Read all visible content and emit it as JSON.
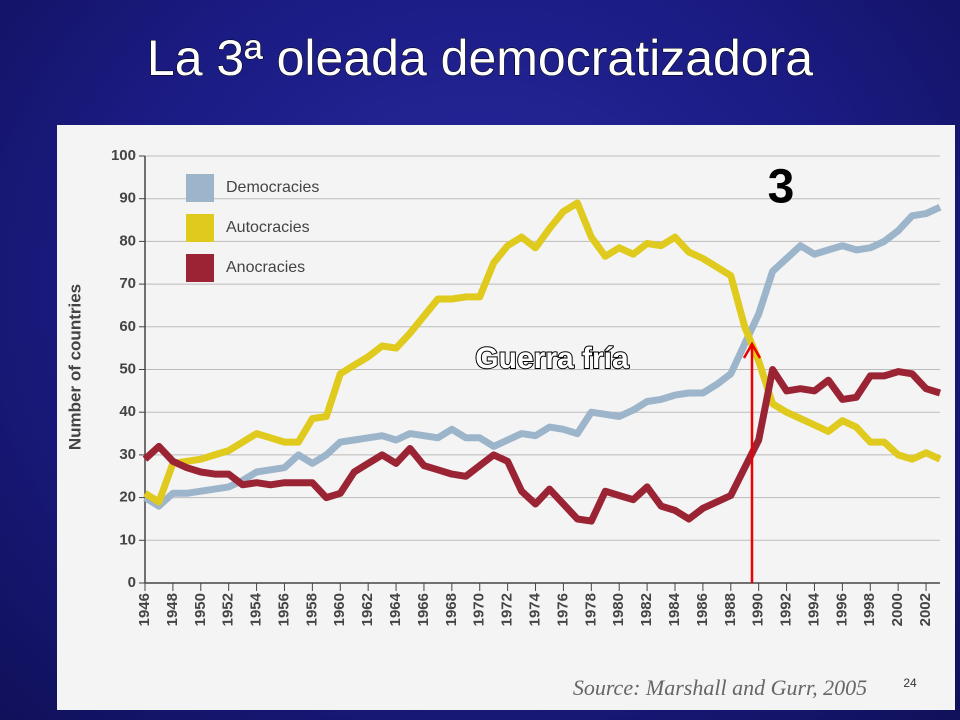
{
  "slide": {
    "title": "La 3ª oleada democratizadora",
    "page_number": "24"
  },
  "chart_data": {
    "type": "line",
    "y_label": "Number of countries",
    "x": [
      1946,
      1947,
      1948,
      1949,
      1950,
      1951,
      1952,
      1953,
      1954,
      1955,
      1956,
      1957,
      1958,
      1959,
      1960,
      1961,
      1962,
      1963,
      1964,
      1965,
      1966,
      1967,
      1968,
      1969,
      1970,
      1971,
      1972,
      1973,
      1974,
      1975,
      1976,
      1977,
      1978,
      1979,
      1980,
      1981,
      1982,
      1983,
      1984,
      1985,
      1986,
      1987,
      1988,
      1989,
      1990,
      1991,
      1992,
      1993,
      1994,
      1995,
      1996,
      1997,
      1998,
      1999,
      2000,
      2001,
      2002,
      2003
    ],
    "series": [
      {
        "name": "Democracies",
        "color": "#9db5cb",
        "values": [
          20,
          18,
          21,
          21,
          21.5,
          22,
          22.5,
          24,
          26,
          26.5,
          27,
          30,
          28,
          30,
          33,
          33.5,
          34,
          34.5,
          33.5,
          35,
          34.5,
          34,
          36,
          34,
          34,
          32,
          33.5,
          35,
          34.5,
          36.5,
          36,
          35,
          40,
          39.5,
          39,
          40.5,
          42.5,
          43,
          44,
          44.5,
          44.5,
          46.5,
          49,
          56,
          63,
          73,
          76,
          79,
          77,
          78,
          79,
          78,
          78.5,
          80,
          82.5,
          86,
          86.5,
          88
        ]
      },
      {
        "name": "Autocracies",
        "color": "#dfca1d",
        "values": [
          21,
          19,
          28,
          28.5,
          29,
          30,
          31,
          33,
          35,
          34,
          33,
          33,
          38.5,
          39,
          49,
          51,
          53,
          55.5,
          55,
          58.5,
          62.5,
          66.5,
          66.5,
          67,
          67,
          75,
          79,
          81,
          78.5,
          83,
          87,
          89,
          81,
          76.5,
          78.5,
          77,
          79.5,
          79,
          81,
          77.5,
          76,
          74,
          72,
          60,
          52,
          42,
          40,
          38.5,
          37,
          35.5,
          38,
          36.5,
          33,
          33,
          30,
          29,
          30.5,
          29
        ]
      },
      {
        "name": "Anocracies",
        "color": "#9b2434",
        "values": [
          29,
          32,
          28.5,
          27,
          26,
          25.5,
          25.5,
          23,
          23.5,
          23,
          23.5,
          23.5,
          23.5,
          20,
          21,
          26,
          28,
          30,
          28,
          31.5,
          27.5,
          26.5,
          25.5,
          25,
          27.5,
          30,
          28.5,
          21.5,
          18.5,
          22,
          18.5,
          15,
          14.5,
          21.5,
          20.5,
          19.5,
          22.5,
          18,
          17,
          15,
          17.5,
          19,
          20.5,
          27,
          33.5,
          50,
          45,
          45.5,
          45,
          47.5,
          43,
          43.5,
          48.5,
          48.5,
          49.5,
          49,
          45.5,
          44.5
        ]
      }
    ],
    "xlim": [
      1946,
      2003
    ],
    "xticks": [
      1946,
      1948,
      1950,
      1952,
      1954,
      1956,
      1958,
      1960,
      1962,
      1964,
      1966,
      1968,
      1970,
      1972,
      1974,
      1976,
      1978,
      1980,
      1982,
      1984,
      1986,
      1988,
      1990,
      1992,
      1994,
      1996,
      1998,
      2000,
      2002
    ],
    "ylim": [
      0,
      100
    ],
    "yticks": [
      0,
      10,
      20,
      30,
      40,
      50,
      60,
      70,
      80,
      90,
      100
    ],
    "grid": true,
    "annotations": [
      "3",
      "Guerra fría"
    ],
    "source": "Source: Marshall and Gurr, 2005"
  }
}
